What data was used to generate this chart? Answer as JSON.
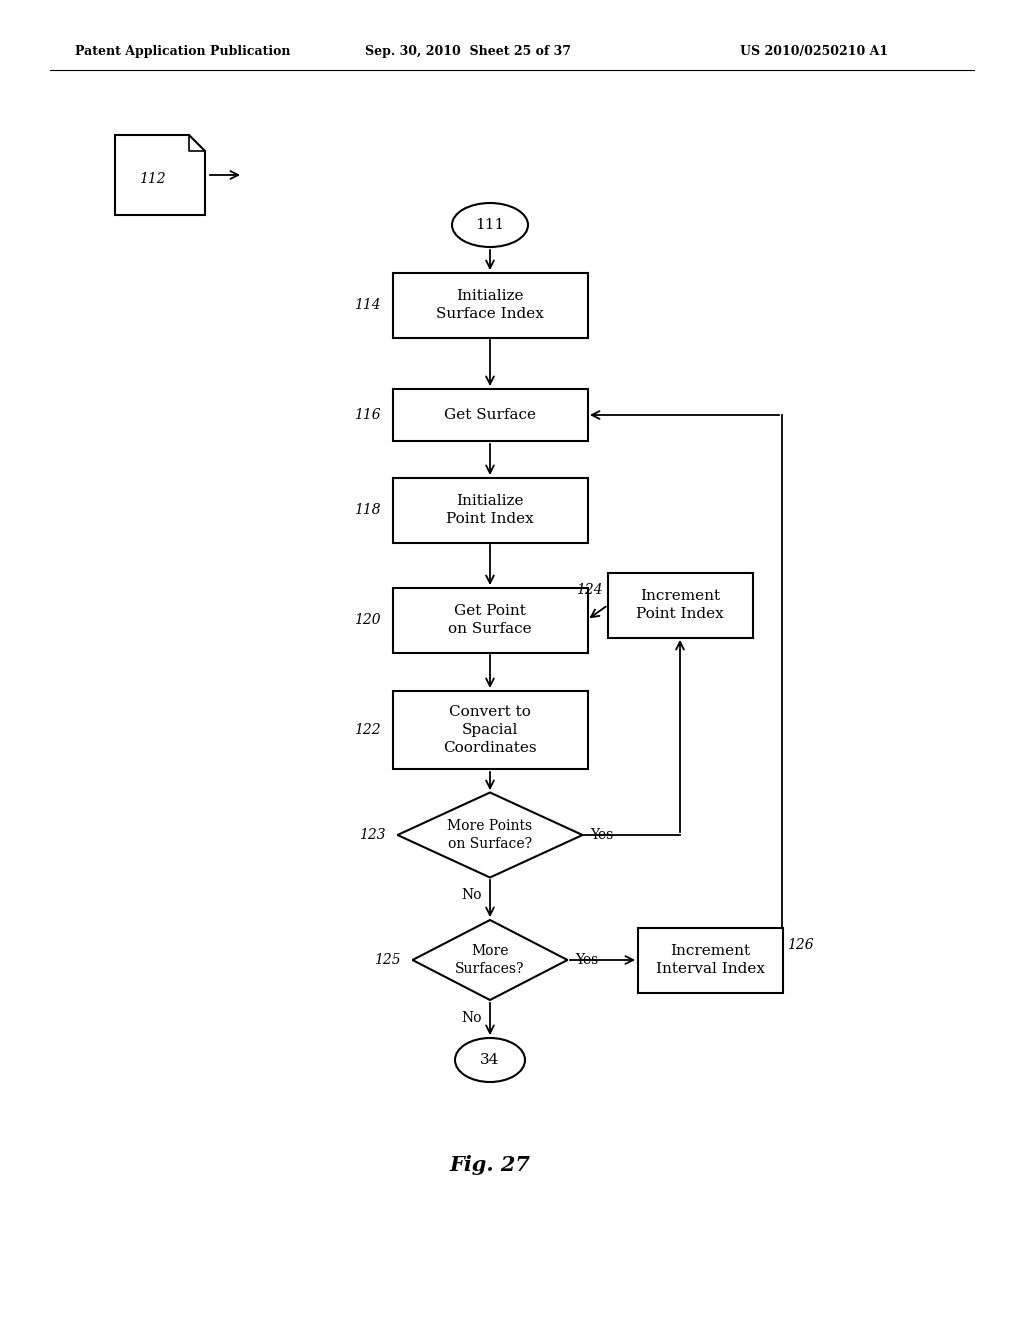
{
  "bg_color": "#ffffff",
  "header_left": "Patent Application Publication",
  "header_mid": "Sep. 30, 2010  Sheet 25 of 37",
  "header_right": "US 2010/0250210 A1",
  "fig_label": "Fig. 27",
  "page_symbol_label": "112"
}
